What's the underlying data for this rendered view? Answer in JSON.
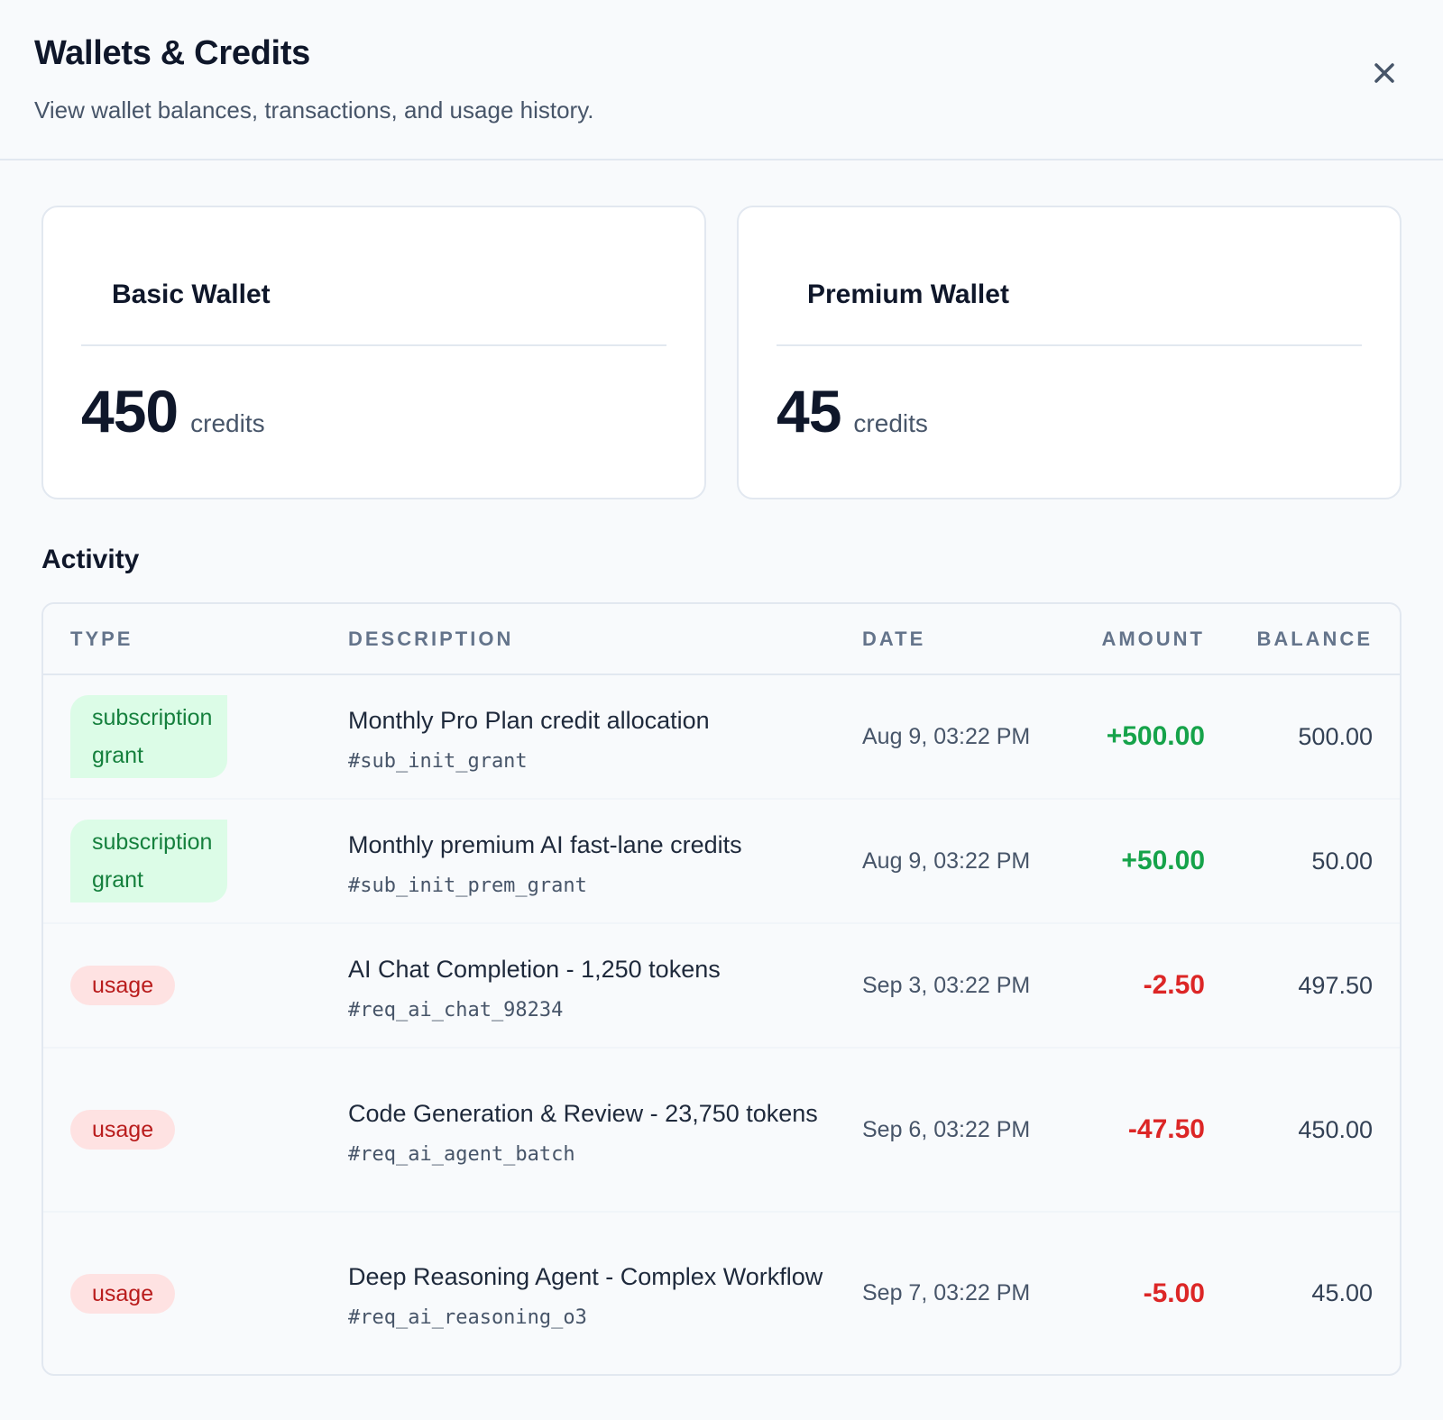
{
  "header": {
    "title": "Wallets & Credits",
    "subtitle": "View wallet balances, transactions, and usage history.",
    "close_icon": "close-icon"
  },
  "wallets": [
    {
      "name": "Basic Wallet",
      "value": "450",
      "unit": "credits"
    },
    {
      "name": "Premium Wallet",
      "value": "45",
      "unit": "credits"
    }
  ],
  "activity": {
    "title": "Activity",
    "columns": {
      "type": "TYPE",
      "description": "DESCRIPTION",
      "date": "DATE",
      "amount": "AMOUNT",
      "balance": "BALANCE"
    },
    "rows": [
      {
        "type": "subscription grant",
        "description": "Monthly Pro Plan credit allocation",
        "ref": "#sub_init_grant",
        "date": "Aug 9, 03:22 PM",
        "amount": "+500.00",
        "balance": "500.00"
      },
      {
        "type": "subscription grant",
        "description": "Monthly premium AI fast-lane credits",
        "ref": "#sub_init_prem_grant",
        "date": "Aug 9, 03:22 PM",
        "amount": "+50.00",
        "balance": "50.00"
      },
      {
        "type": "usage",
        "description": "AI Chat Completion - 1,250 tokens",
        "ref": "#req_ai_chat_98234",
        "date": "Sep 3, 03:22 PM",
        "amount": "-2.50",
        "balance": "497.50"
      },
      {
        "type": "usage",
        "description": "Code Generation & Review - 23,750 tokens",
        "ref": "#req_ai_agent_batch",
        "date": "Sep 6, 03:22 PM",
        "amount": "-47.50",
        "balance": "450.00"
      },
      {
        "type": "usage",
        "description": "Deep Reasoning Agent - Complex Workflow",
        "ref": "#req_ai_reasoning_o3",
        "date": "Sep 7, 03:22 PM",
        "amount": "-5.00",
        "balance": "45.00"
      }
    ]
  },
  "colors": {
    "positive": "#16a34a",
    "negative": "#dc2626",
    "grant_bg": "#dcfce7",
    "usage_bg": "#fee2e2"
  }
}
